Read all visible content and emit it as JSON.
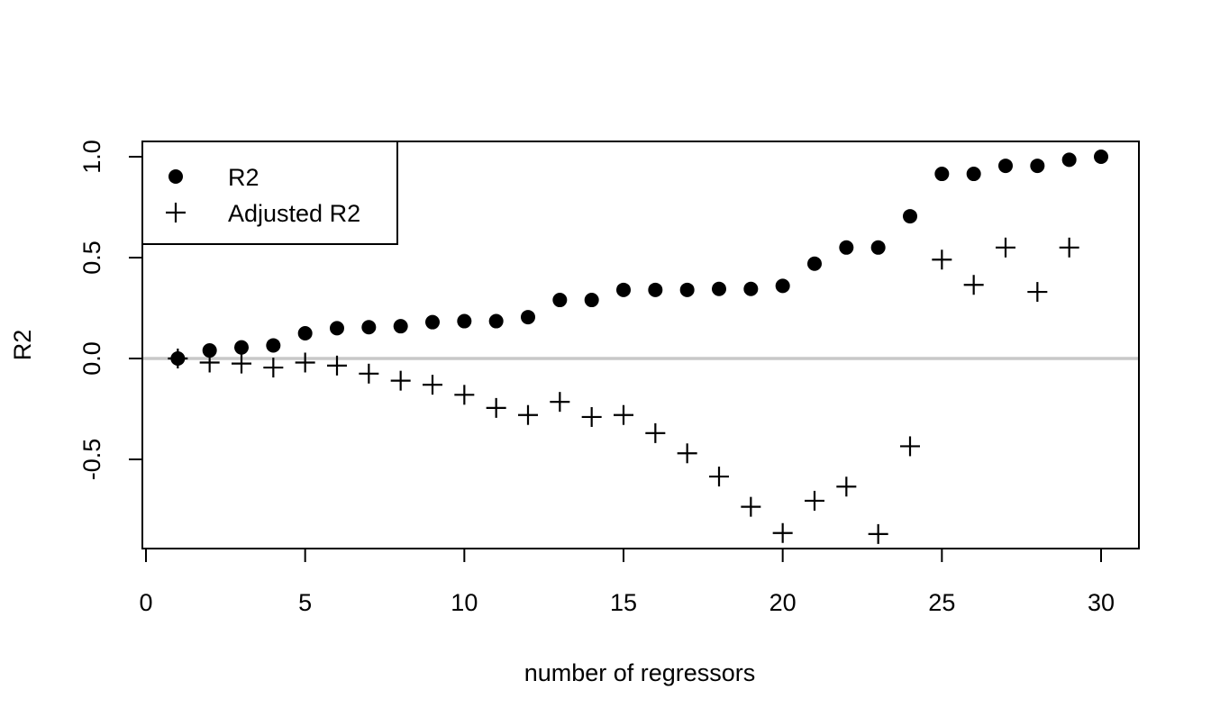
{
  "chart_data": {
    "type": "scatter",
    "xlabel": "number of regressors",
    "ylabel": "R2",
    "xlim": [
      0,
      31
    ],
    "ylim": [
      -0.95,
      1.08
    ],
    "x_ticks": [
      0,
      5,
      10,
      15,
      20,
      25,
      30
    ],
    "y_ticks": [
      -0.5,
      0.0,
      0.5,
      1.0
    ],
    "x_tick_labels": [
      "0",
      "5",
      "10",
      "15",
      "20",
      "25",
      "30"
    ],
    "y_tick_labels": [
      "-0.5",
      "0.0",
      "0.5",
      "1.0"
    ],
    "reference_line": {
      "y": 0,
      "color": "#c8c8c8"
    },
    "legend": {
      "placement": "top-left",
      "entries": [
        {
          "label": "R2",
          "symbol": "filled-circle"
        },
        {
          "label": "Adjusted R2",
          "symbol": "plus"
        }
      ]
    },
    "series": [
      {
        "name": "R2",
        "marker": "filled-circle",
        "x": [
          1,
          2,
          3,
          4,
          5,
          6,
          7,
          8,
          9,
          10,
          11,
          12,
          13,
          14,
          15,
          16,
          17,
          18,
          19,
          20,
          21,
          22,
          23,
          24,
          25,
          26,
          27,
          28,
          29,
          30
        ],
        "y": [
          0.0,
          0.04,
          0.055,
          0.065,
          0.125,
          0.15,
          0.155,
          0.16,
          0.18,
          0.185,
          0.185,
          0.205,
          0.29,
          0.29,
          0.34,
          0.34,
          0.34,
          0.345,
          0.345,
          0.36,
          0.47,
          0.55,
          0.55,
          0.705,
          0.915,
          0.915,
          0.955,
          0.955,
          0.985,
          1.0
        ]
      },
      {
        "name": "Adjusted R2",
        "marker": "plus",
        "x": [
          1,
          2,
          3,
          4,
          5,
          6,
          7,
          8,
          9,
          10,
          11,
          12,
          13,
          14,
          15,
          16,
          17,
          18,
          19,
          20,
          21,
          22,
          23,
          24,
          25,
          26,
          27,
          28,
          29,
          30
        ],
        "y": [
          0.0,
          -0.02,
          -0.025,
          -0.045,
          -0.02,
          -0.035,
          -0.075,
          -0.11,
          -0.13,
          -0.18,
          -0.245,
          -0.28,
          -0.215,
          -0.29,
          -0.28,
          -0.37,
          -0.47,
          -0.585,
          -0.735,
          -0.865,
          -0.705,
          -0.635,
          -0.87,
          -0.435,
          0.49,
          0.365,
          0.55,
          0.33,
          0.55,
          null
        ]
      }
    ]
  }
}
